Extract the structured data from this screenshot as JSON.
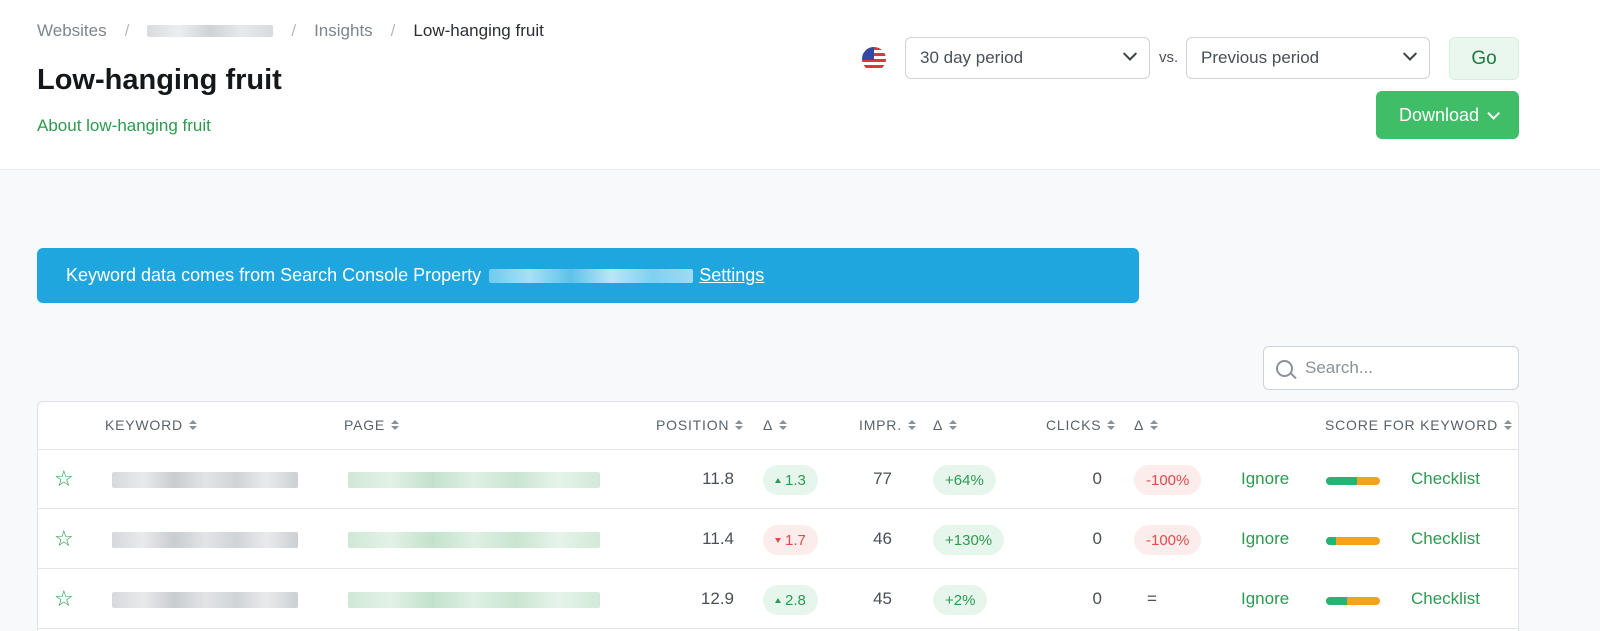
{
  "breadcrumb": {
    "websites": "Websites",
    "separator": "/",
    "insights": "Insights",
    "current": "Low-hanging fruit"
  },
  "page": {
    "title": "Low-hanging fruit",
    "about_link": "About low-hanging fruit"
  },
  "controls": {
    "country_icon": "us-flag-icon",
    "period": "30 day period",
    "vs_label": "vs.",
    "compare": "Previous period",
    "go_label": "Go",
    "download_label": "Download"
  },
  "banner": {
    "text": "Keyword data comes from Search Console Property",
    "settings_link": "Settings",
    "color": "#1fa6de"
  },
  "search": {
    "placeholder": "Search..."
  },
  "table": {
    "headers": {
      "keyword": "KEYWORD",
      "page": "PAGE",
      "position": "POSITION",
      "position_delta": "Δ",
      "impressions": "IMPR.",
      "impressions_delta": "Δ",
      "clicks": "CLICKS",
      "clicks_delta": "Δ",
      "score": "SCORE FOR KEYWORD"
    },
    "rows": [
      {
        "position": "11.8",
        "position_delta": "1.3",
        "position_delta_dir": "up",
        "impressions": "77",
        "impressions_delta": "+64%",
        "clicks": "0",
        "clicks_delta": "-100%",
        "ignore": "Ignore",
        "score": 0.58,
        "checklist": "Checklist"
      },
      {
        "position": "11.4",
        "position_delta": "1.7",
        "position_delta_dir": "down",
        "impressions": "46",
        "impressions_delta": "+130%",
        "clicks": "0",
        "clicks_delta": "-100%",
        "ignore": "Ignore",
        "score": 0.18,
        "checklist": "Checklist"
      },
      {
        "position": "12.9",
        "position_delta": "2.8",
        "position_delta_dir": "up",
        "impressions": "45",
        "impressions_delta": "+2%",
        "clicks": "0",
        "clicks_delta": "=",
        "ignore": "Ignore",
        "score": 0.38,
        "checklist": "Checklist"
      }
    ]
  },
  "colors": {
    "accent_green": "#2d9a4f",
    "download_green": "#3fbe67",
    "positive_pill": "#e7f6ec",
    "negative_pill": "#fdecec",
    "score_good": "#22b573",
    "score_warn": "#f2a31b"
  }
}
